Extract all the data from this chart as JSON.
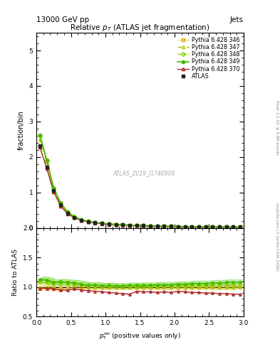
{
  "title": "Relative $p_T$ (ATLAS jet fragmentation)",
  "top_left_label": "13000 GeV pp",
  "top_right_label": "Jets",
  "ylabel_main": "fraction/bin",
  "ylabel_ratio": "Ratio to ATLAS",
  "watermark": "ATLAS_2019_I1740909",
  "right_label": "Rivet 3.1.10; ≥ 2.8M events",
  "right_label2": "mcplots.cern.ch [arXiv:1306.3436]",
  "xlim": [
    0,
    3.0
  ],
  "ylim_main": [
    0,
    5.5
  ],
  "ylim_ratio": [
    0.5,
    2.0
  ],
  "atlas_x": [
    0.05,
    0.15,
    0.25,
    0.35,
    0.45,
    0.55,
    0.65,
    0.75,
    0.85,
    0.95,
    1.05,
    1.15,
    1.25,
    1.35,
    1.45,
    1.55,
    1.65,
    1.75,
    1.85,
    1.95,
    2.05,
    2.15,
    2.25,
    2.35,
    2.45,
    2.55,
    2.65,
    2.75,
    2.85,
    2.95
  ],
  "atlas_y": [
    2.32,
    1.72,
    1.05,
    0.65,
    0.42,
    0.3,
    0.22,
    0.18,
    0.15,
    0.13,
    0.11,
    0.1,
    0.09,
    0.08,
    0.07,
    0.065,
    0.06,
    0.055,
    0.05,
    0.045,
    0.04,
    0.038,
    0.035,
    0.033,
    0.031,
    0.029,
    0.027,
    0.026,
    0.025,
    0.024
  ],
  "p346_y": [
    2.3,
    1.7,
    1.03,
    0.63,
    0.41,
    0.3,
    0.22,
    0.18,
    0.15,
    0.13,
    0.11,
    0.1,
    0.09,
    0.08,
    0.07,
    0.065,
    0.06,
    0.055,
    0.05,
    0.045,
    0.04,
    0.038,
    0.035,
    0.033,
    0.031,
    0.029,
    0.027,
    0.026,
    0.025,
    0.024
  ],
  "p347_y": [
    2.5,
    1.85,
    1.1,
    0.68,
    0.44,
    0.31,
    0.23,
    0.18,
    0.15,
    0.13,
    0.11,
    0.1,
    0.09,
    0.08,
    0.07,
    0.065,
    0.06,
    0.055,
    0.05,
    0.045,
    0.04,
    0.038,
    0.035,
    0.033,
    0.031,
    0.029,
    0.027,
    0.026,
    0.025,
    0.024
  ],
  "p348_y": [
    2.6,
    1.9,
    1.12,
    0.7,
    0.45,
    0.32,
    0.23,
    0.185,
    0.155,
    0.132,
    0.112,
    0.101,
    0.091,
    0.081,
    0.071,
    0.066,
    0.061,
    0.056,
    0.051,
    0.046,
    0.041,
    0.039,
    0.036,
    0.034,
    0.032,
    0.03,
    0.028,
    0.027,
    0.026,
    0.025
  ],
  "p349_y": [
    2.62,
    1.92,
    1.13,
    0.71,
    0.455,
    0.322,
    0.232,
    0.186,
    0.156,
    0.133,
    0.113,
    0.102,
    0.092,
    0.082,
    0.072,
    0.067,
    0.062,
    0.057,
    0.052,
    0.047,
    0.042,
    0.04,
    0.037,
    0.035,
    0.033,
    0.031,
    0.029,
    0.028,
    0.027,
    0.026
  ],
  "p370_y": [
    2.28,
    1.68,
    1.02,
    0.62,
    0.4,
    0.29,
    0.21,
    0.17,
    0.14,
    0.12,
    0.1,
    0.09,
    0.08,
    0.07,
    0.065,
    0.06,
    0.055,
    0.05,
    0.046,
    0.041,
    0.037,
    0.035,
    0.032,
    0.03,
    0.028,
    0.026,
    0.024,
    0.023,
    0.022,
    0.021
  ],
  "ratio346_y": [
    0.99,
    0.99,
    0.98,
    0.97,
    0.98,
    1.0,
    1.0,
    1.0,
    1.0,
    1.0,
    1.0,
    1.0,
    1.0,
    1.0,
    1.0,
    1.0,
    1.0,
    1.0,
    1.0,
    1.0,
    1.0,
    1.0,
    1.0,
    1.0,
    1.0,
    1.0,
    1.0,
    1.0,
    1.0,
    1.0
  ],
  "ratio347_y": [
    1.08,
    1.08,
    1.05,
    1.05,
    1.05,
    1.03,
    1.04,
    1.01,
    1.0,
    1.0,
    1.0,
    1.0,
    1.0,
    1.0,
    1.0,
    1.0,
    1.0,
    1.0,
    1.0,
    1.0,
    1.0,
    1.0,
    1.0,
    1.0,
    1.0,
    1.0,
    1.0,
    1.0,
    1.0,
    1.0
  ],
  "ratio348_y": [
    1.12,
    1.1,
    1.07,
    1.08,
    1.07,
    1.07,
    1.05,
    1.03,
    1.03,
    1.02,
    1.02,
    1.01,
    1.01,
    1.01,
    1.01,
    1.02,
    1.02,
    1.02,
    1.02,
    1.02,
    1.03,
    1.03,
    1.03,
    1.03,
    1.03,
    1.03,
    1.04,
    1.04,
    1.04,
    1.04
  ],
  "ratio349_y": [
    1.13,
    1.12,
    1.08,
    1.09,
    1.08,
    1.07,
    1.05,
    1.03,
    1.04,
    1.02,
    1.03,
    1.02,
    1.02,
    1.03,
    1.03,
    1.03,
    1.03,
    1.04,
    1.04,
    1.04,
    1.05,
    1.05,
    1.06,
    1.06,
    1.06,
    1.07,
    1.07,
    1.08,
    1.08,
    1.08
  ],
  "ratio370_y": [
    0.98,
    0.98,
    0.97,
    0.95,
    0.95,
    0.97,
    0.95,
    0.94,
    0.93,
    0.92,
    0.91,
    0.9,
    0.89,
    0.88,
    0.93,
    0.92,
    0.92,
    0.91,
    0.92,
    0.91,
    0.93,
    0.92,
    0.91,
    0.91,
    0.9,
    0.9,
    0.89,
    0.89,
    0.88,
    0.88
  ],
  "color_346": "#d4aa00",
  "color_347": "#aacc00",
  "color_348": "#88cc00",
  "color_349": "#44bb00",
  "color_370": "#aa2222",
  "color_atlas": "#222222",
  "band_color_346": "#ffe080",
  "band_color_347": "#ddee80",
  "band_color_348": "#ccee60",
  "band_color_349": "#88dd60",
  "legend_labels": [
    "ATLAS",
    "Pythia 6.428 346",
    "Pythia 6.428 347",
    "Pythia 6.428 348",
    "Pythia 6.428 349",
    "Pythia 6.428 370"
  ]
}
